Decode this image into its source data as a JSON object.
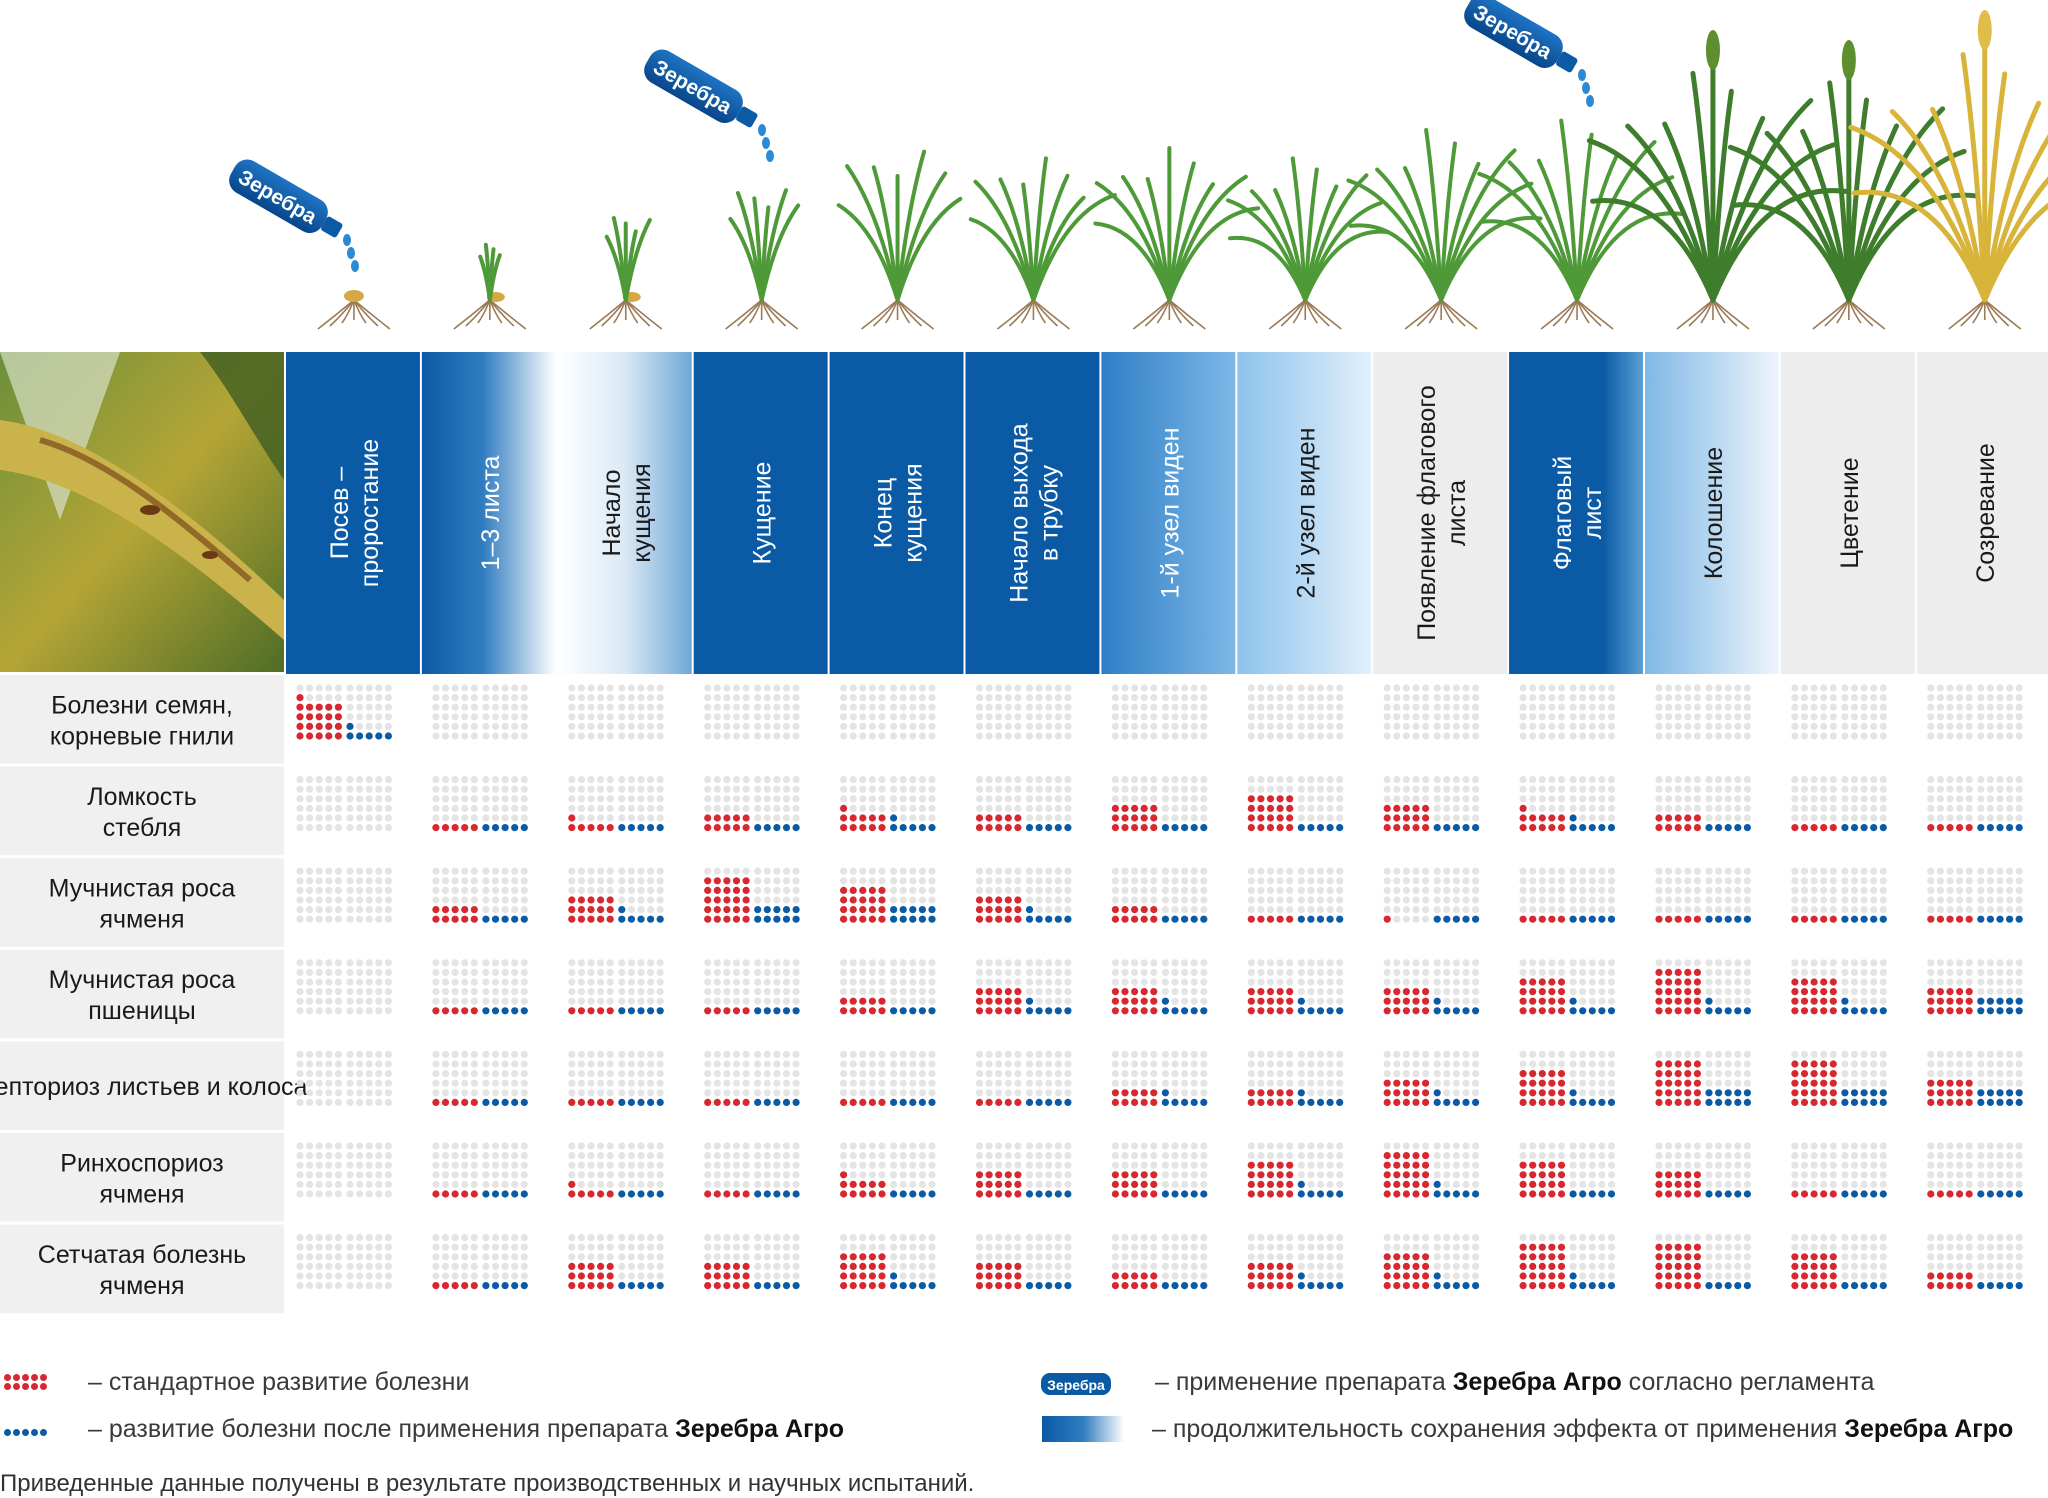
{
  "colors": {
    "dark_blue": "#0a5aa5",
    "mid_blue": "#5a9fd6",
    "light_blue": "#cfe5f7",
    "gray_band": "#ededed",
    "row_label_bg": "#f0f0f0",
    "red_dot": "#d8282f",
    "blue_dot": "#0a5aa5",
    "empty_dot": "#e4e4e4"
  },
  "bottle_label": "Зеребра",
  "chart_data": {
    "type": "dot-matrix",
    "stages": [
      {
        "name": "Посев – проростание",
        "style": "dark",
        "bottle": true
      },
      {
        "name": "1–3 листа",
        "style": "fade",
        "bottle": false
      },
      {
        "name": "Начало кущения",
        "style": "fade-light",
        "bottle": false
      },
      {
        "name": "Кущение",
        "style": "dark",
        "bottle": true
      },
      {
        "name": "Конец кущения",
        "style": "dark",
        "bottle": false
      },
      {
        "name": "Начало выхода в трубку",
        "style": "dark",
        "bottle": false
      },
      {
        "name": "1-й узел виден",
        "style": "mid",
        "bottle": false
      },
      {
        "name": "2-й узел виден",
        "style": "light",
        "bottle": false
      },
      {
        "name": "Появление флагового листа",
        "style": "gray",
        "bottle": false
      },
      {
        "name": "Флаговый лист",
        "style": "dark-fade",
        "bottle": true
      },
      {
        "name": "Колошение",
        "style": "light",
        "bottle": false
      },
      {
        "name": "Цветение",
        "style": "gray",
        "bottle": false
      },
      {
        "name": "Созревание",
        "style": "gray",
        "bottle": false
      }
    ],
    "diseases": [
      "Болезни семян, корневые гнили",
      "Ломкость стебля",
      "Мучнистая роса ячменя",
      "Мучнистая роса пшеницы",
      "Септориоз листьев и колоса",
      "Ринхоспориоз ячменя",
      "Сетчатая болезнь ячменя"
    ],
    "standard": [
      [
        21,
        0,
        0,
        0,
        0,
        0,
        0,
        0,
        0,
        0,
        0,
        0,
        0
      ],
      [
        0,
        5,
        6,
        10,
        11,
        10,
        15,
        20,
        15,
        11,
        10,
        5,
        5
      ],
      [
        0,
        10,
        15,
        25,
        20,
        15,
        10,
        5,
        1,
        5,
        5,
        5,
        5
      ],
      [
        0,
        5,
        5,
        5,
        10,
        15,
        15,
        15,
        15,
        20,
        25,
        20,
        15
      ],
      [
        0,
        5,
        5,
        5,
        5,
        5,
        10,
        10,
        15,
        20,
        25,
        25,
        15
      ],
      [
        0,
        5,
        6,
        5,
        11,
        15,
        15,
        20,
        25,
        20,
        15,
        5,
        5
      ],
      [
        0,
        5,
        15,
        15,
        20,
        15,
        10,
        15,
        20,
        25,
        25,
        20,
        10
      ]
    ],
    "after": [
      [
        6,
        0,
        0,
        0,
        0,
        0,
        0,
        0,
        0,
        0,
        0,
        0,
        0
      ],
      [
        0,
        5,
        5,
        5,
        6,
        5,
        5,
        5,
        5,
        6,
        5,
        5,
        5
      ],
      [
        0,
        5,
        6,
        10,
        10,
        6,
        5,
        5,
        5,
        5,
        5,
        5,
        5
      ],
      [
        0,
        5,
        5,
        5,
        5,
        6,
        6,
        6,
        6,
        6,
        6,
        6,
        10
      ],
      [
        0,
        5,
        5,
        5,
        5,
        5,
        6,
        6,
        6,
        6,
        10,
        10,
        10
      ],
      [
        0,
        5,
        5,
        5,
        5,
        5,
        5,
        6,
        6,
        5,
        5,
        5,
        5
      ],
      [
        0,
        5,
        5,
        5,
        6,
        5,
        5,
        6,
        6,
        6,
        5,
        5,
        5
      ]
    ]
  },
  "legend": {
    "standard_text": "– стандартное развитие болезни",
    "after_text": "– развитие болезни после применения препарата ",
    "after_product": "Зеребра Агро",
    "bottle_text": "– применение препарата ",
    "bottle_product": "Зеребра Агро",
    "bottle_suffix": " согласно регламента",
    "duration_text": "– продолжительность сохранения эффекта от применения ",
    "duration_product": "Зеребра Агро"
  },
  "footnote": "Приведенные данные получены в результате производственных и научных испытаний."
}
